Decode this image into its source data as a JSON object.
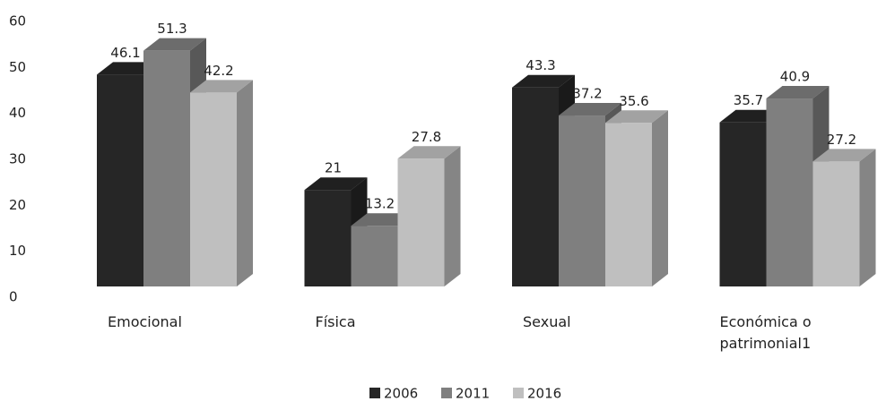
{
  "chart_data": {
    "type": "bar3d",
    "categories": [
      "Emocional",
      "Física",
      "Sexual",
      "Económica o patrimonial1"
    ],
    "series": [
      {
        "name": "2006",
        "color": "#262626",
        "values": [
          46.1,
          21,
          43.3,
          35.7
        ]
      },
      {
        "name": "2011",
        "color": "#7f7f7f",
        "values": [
          51.3,
          13.2,
          37.2,
          40.9
        ]
      },
      {
        "name": "2016",
        "color": "#bfbfbf",
        "values": [
          42.2,
          27.8,
          35.6,
          27.2
        ]
      }
    ],
    "ylim": [
      0,
      60
    ],
    "yticks": [
      0,
      10,
      20,
      30,
      40,
      50,
      60
    ],
    "legend": "bottom"
  }
}
